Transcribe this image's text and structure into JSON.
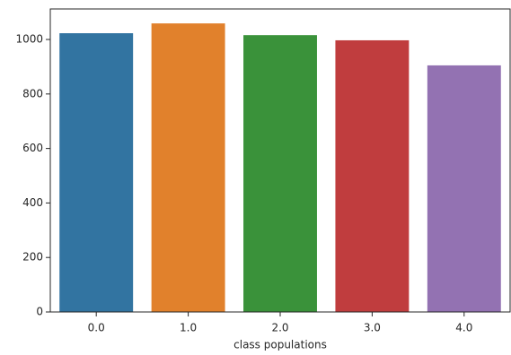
{
  "chart_data": {
    "type": "bar",
    "xlabel": "class populations",
    "categories": [
      "0.0",
      "1.0",
      "2.0",
      "3.0",
      "4.0"
    ],
    "values": [
      1023,
      1059,
      1016,
      997,
      905
    ],
    "colors": [
      "#3274a1",
      "#e1812c",
      "#3a923a",
      "#c03d3e",
      "#9372b2"
    ],
    "ylim": [
      0,
      1112
    ],
    "yticks": [
      0,
      200,
      400,
      600,
      800,
      1000
    ]
  }
}
